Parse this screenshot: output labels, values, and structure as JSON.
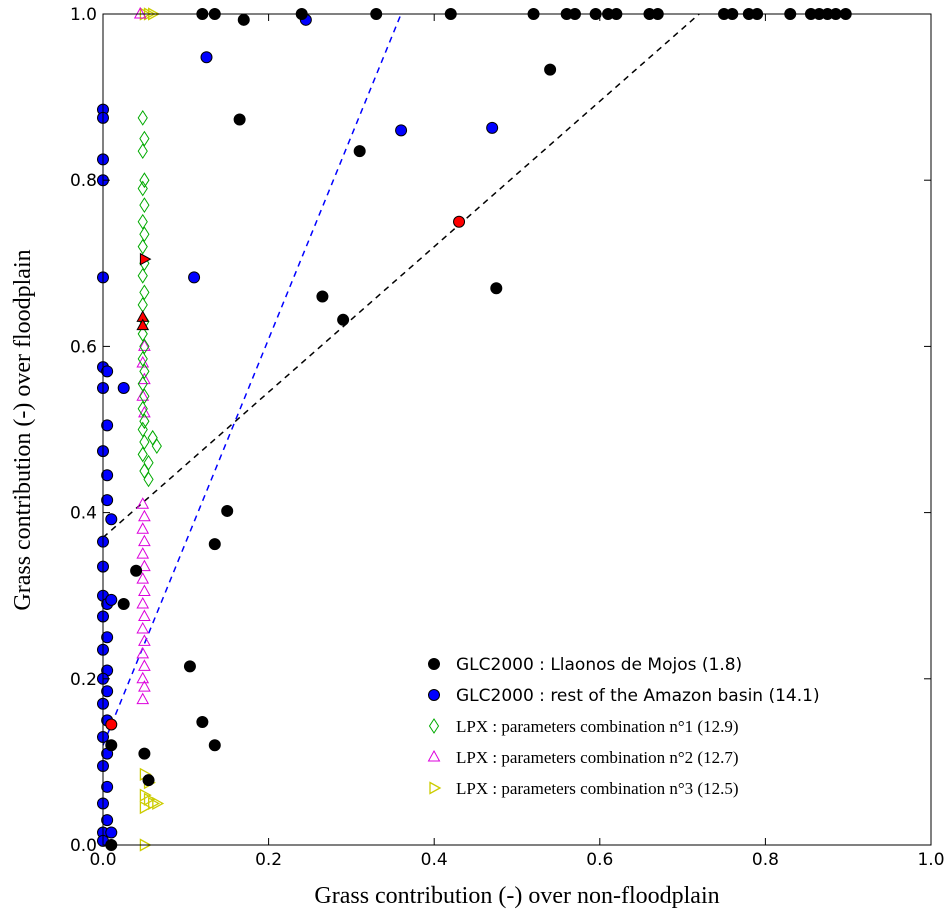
{
  "chart_data": {
    "type": "scatter",
    "xlabel": "Grass contribution (-) over non-floodplain",
    "ylabel": "Grass contribution (-) over floodplain",
    "xlim": [
      0.0,
      1.0
    ],
    "ylim": [
      0.0,
      1.0
    ],
    "x_ticks": [
      "0.0",
      "0.2",
      "0.4",
      "0.6",
      "0.8",
      "1.0"
    ],
    "y_ticks": [
      "0.0",
      "0.2",
      "0.4",
      "0.6",
      "0.8",
      "1.0"
    ],
    "grid": false,
    "legend_position": "lower-right",
    "series": [
      {
        "name": "GLC2000 : Llaonos de Mojos (1.8)",
        "marker": "circle-filled",
        "color": "#000000",
        "points": [
          [
            0.12,
            1.0
          ],
          [
            0.135,
            1.0
          ],
          [
            0.17,
            0.993
          ],
          [
            0.24,
            1.0
          ],
          [
            0.33,
            1.0
          ],
          [
            0.42,
            1.0
          ],
          [
            0.52,
            1.0
          ],
          [
            0.56,
            1.0
          ],
          [
            0.57,
            1.0
          ],
          [
            0.595,
            1.0
          ],
          [
            0.61,
            1.0
          ],
          [
            0.62,
            1.0
          ],
          [
            0.66,
            1.0
          ],
          [
            0.67,
            1.0
          ],
          [
            0.75,
            1.0
          ],
          [
            0.76,
            1.0
          ],
          [
            0.78,
            1.0
          ],
          [
            0.79,
            1.0
          ],
          [
            0.83,
            1.0
          ],
          [
            0.855,
            1.0
          ],
          [
            0.865,
            1.0
          ],
          [
            0.875,
            1.0
          ],
          [
            0.885,
            1.0
          ],
          [
            0.897,
            1.0
          ],
          [
            0.54,
            0.933
          ],
          [
            0.165,
            0.873
          ],
          [
            0.31,
            0.835
          ],
          [
            0.265,
            0.66
          ],
          [
            0.29,
            0.632
          ],
          [
            0.475,
            0.67
          ],
          [
            0.15,
            0.402
          ],
          [
            0.135,
            0.362
          ],
          [
            0.04,
            0.33
          ],
          [
            0.025,
            0.29
          ],
          [
            0.105,
            0.215
          ],
          [
            0.12,
            0.148
          ],
          [
            0.135,
            0.12
          ],
          [
            0.01,
            0.12
          ],
          [
            0.05,
            0.11
          ],
          [
            0.055,
            0.078
          ],
          [
            0.01,
            0.0
          ]
        ]
      },
      {
        "name": "GLC2000 : rest of the Amazon basin (14.1)",
        "marker": "circle-filled",
        "color": "#0000ff",
        "points": [
          [
            0.245,
            0.993
          ],
          [
            0.125,
            0.948
          ],
          [
            0.36,
            0.86
          ],
          [
            0.47,
            0.863
          ],
          [
            0.11,
            0.683
          ],
          [
            0.0,
            0.885
          ],
          [
            0.0,
            0.875
          ],
          [
            0.0,
            0.825
          ],
          [
            0.0,
            0.8
          ],
          [
            0.0,
            0.683
          ],
          [
            0.0,
            0.575
          ],
          [
            0.005,
            0.57
          ],
          [
            0.0,
            0.55
          ],
          [
            0.025,
            0.55
          ],
          [
            0.005,
            0.505
          ],
          [
            0.0,
            0.474
          ],
          [
            0.005,
            0.445
          ],
          [
            0.005,
            0.415
          ],
          [
            0.01,
            0.392
          ],
          [
            0.0,
            0.365
          ],
          [
            0.0,
            0.335
          ],
          [
            0.0,
            0.3
          ],
          [
            0.005,
            0.29
          ],
          [
            0.01,
            0.295
          ],
          [
            0.0,
            0.275
          ],
          [
            0.005,
            0.25
          ],
          [
            0.0,
            0.235
          ],
          [
            0.005,
            0.21
          ],
          [
            0.0,
            0.2
          ],
          [
            0.005,
            0.185
          ],
          [
            0.0,
            0.17
          ],
          [
            0.005,
            0.15
          ],
          [
            0.0,
            0.13
          ],
          [
            0.005,
            0.11
          ],
          [
            0.0,
            0.095
          ],
          [
            0.005,
            0.07
          ],
          [
            0.0,
            0.05
          ],
          [
            0.005,
            0.03
          ],
          [
            0.0,
            0.015
          ],
          [
            0.01,
            0.015
          ],
          [
            0.0,
            0.005
          ]
        ]
      },
      {
        "name": "LPX : parameters combination n°1 (12.9)",
        "marker": "diamond-open",
        "color": "#00aa00",
        "points": [
          [
            0.048,
            0.875
          ],
          [
            0.05,
            0.85
          ],
          [
            0.048,
            0.835
          ],
          [
            0.05,
            0.8
          ],
          [
            0.048,
            0.79
          ],
          [
            0.05,
            0.77
          ],
          [
            0.048,
            0.75
          ],
          [
            0.05,
            0.735
          ],
          [
            0.048,
            0.72
          ],
          [
            0.05,
            0.7
          ],
          [
            0.048,
            0.685
          ],
          [
            0.05,
            0.665
          ],
          [
            0.048,
            0.65
          ],
          [
            0.05,
            0.63
          ],
          [
            0.048,
            0.615
          ],
          [
            0.05,
            0.6
          ],
          [
            0.048,
            0.585
          ],
          [
            0.05,
            0.57
          ],
          [
            0.048,
            0.555
          ],
          [
            0.05,
            0.54
          ],
          [
            0.048,
            0.525
          ],
          [
            0.05,
            0.51
          ],
          [
            0.048,
            0.5
          ],
          [
            0.05,
            0.485
          ],
          [
            0.048,
            0.47
          ],
          [
            0.055,
            0.46
          ],
          [
            0.06,
            0.49
          ],
          [
            0.065,
            0.48
          ],
          [
            0.05,
            0.45
          ],
          [
            0.055,
            0.44
          ]
        ]
      },
      {
        "name": "LPX : parameters combination n°2 (12.7)",
        "marker": "triangle-up-open",
        "color": "#dd00dd",
        "points": [
          [
            0.045,
            1.0
          ],
          [
            0.048,
            0.41
          ],
          [
            0.05,
            0.395
          ],
          [
            0.048,
            0.38
          ],
          [
            0.05,
            0.365
          ],
          [
            0.048,
            0.35
          ],
          [
            0.05,
            0.335
          ],
          [
            0.048,
            0.32
          ],
          [
            0.05,
            0.305
          ],
          [
            0.048,
            0.29
          ],
          [
            0.05,
            0.275
          ],
          [
            0.048,
            0.26
          ],
          [
            0.05,
            0.245
          ],
          [
            0.048,
            0.23
          ],
          [
            0.05,
            0.215
          ],
          [
            0.048,
            0.2
          ],
          [
            0.05,
            0.19
          ],
          [
            0.048,
            0.175
          ],
          [
            0.05,
            0.6
          ],
          [
            0.048,
            0.58
          ],
          [
            0.05,
            0.56
          ],
          [
            0.048,
            0.54
          ],
          [
            0.05,
            0.52
          ]
        ]
      },
      {
        "name": "LPX : parameters combination n°3 (12.5)",
        "marker": "triangle-right-open",
        "color": "#cccc00",
        "points": [
          [
            0.05,
            1.0
          ],
          [
            0.055,
            1.0
          ],
          [
            0.06,
            1.0
          ],
          [
            0.05,
            0.085
          ],
          [
            0.055,
            0.075
          ],
          [
            0.05,
            0.06
          ],
          [
            0.055,
            0.055
          ],
          [
            0.06,
            0.05
          ],
          [
            0.065,
            0.05
          ],
          [
            0.05,
            0.045
          ],
          [
            0.05,
            0.0
          ]
        ]
      }
    ],
    "highlight_points": [
      {
        "x": 0.43,
        "y": 0.75,
        "marker": "circle",
        "color": "#ff0000"
      },
      {
        "x": 0.01,
        "y": 0.145,
        "marker": "circle",
        "color": "#ff0000"
      },
      {
        "x": 0.05,
        "y": 0.705,
        "marker": "triangle-right",
        "color": "#ff0000"
      },
      {
        "x": 0.048,
        "y": 0.635,
        "marker": "triangle-up",
        "color": "#ff0000"
      },
      {
        "x": 0.048,
        "y": 0.625,
        "marker": "triangle-up",
        "color": "#ff0000"
      }
    ],
    "regression_lines": [
      {
        "color": "#000000",
        "x": [
          0.0,
          0.72
        ],
        "y": [
          0.37,
          1.0
        ]
      },
      {
        "color": "#0000ff",
        "x": [
          0.0,
          0.36
        ],
        "y": [
          0.12,
          1.0
        ]
      }
    ]
  }
}
